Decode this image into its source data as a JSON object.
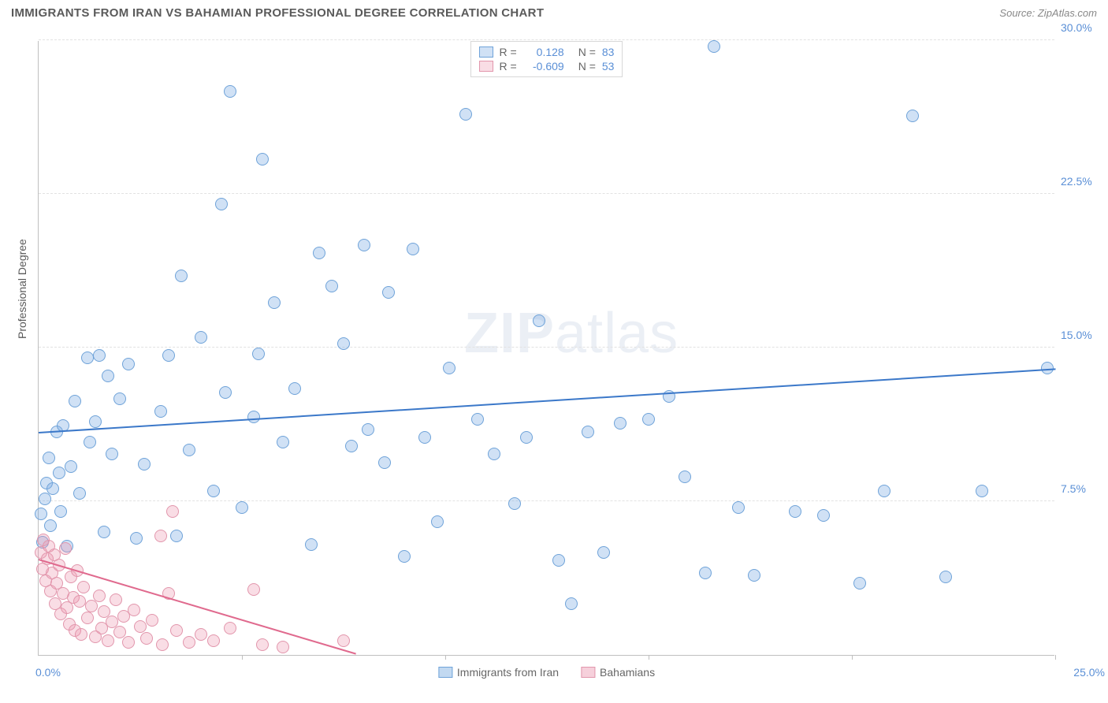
{
  "title": "IMMIGRANTS FROM IRAN VS BAHAMIAN PROFESSIONAL DEGREE CORRELATION CHART",
  "source_label": "Source:",
  "source_name": "ZipAtlas.com",
  "y_axis_label": "Professional Degree",
  "watermark_bold": "ZIP",
  "watermark_rest": "atlas",
  "chart": {
    "type": "scatter",
    "xlim": [
      0,
      25
    ],
    "ylim": [
      0,
      30
    ],
    "x_origin_label": "0.0%",
    "x_max_label": "25.0%",
    "y_ticks": [
      7.5,
      15.0,
      22.5,
      30.0
    ],
    "y_tick_labels": [
      "7.5%",
      "15.0%",
      "22.5%",
      "30.0%"
    ],
    "x_tick_positions": [
      5,
      10,
      15,
      20,
      25
    ],
    "background_color": "#ffffff",
    "grid_color": "#e2e2e2",
    "axis_color": "#bfbfbf",
    "tick_label_color": "#5a8fd6",
    "point_radius": 8,
    "series": [
      {
        "name": "Immigrants from Iran",
        "color_fill": "rgba(120,170,225,0.35)",
        "color_stroke": "#6fa3d9",
        "trend_color": "#3b78c9",
        "trend_width": 2,
        "r_label": "R =",
        "r_value": "0.128",
        "n_label": "N =",
        "n_value": "83",
        "trend": {
          "x1": 0,
          "y1": 10.8,
          "x2": 25,
          "y2": 13.9
        },
        "points": [
          [
            0.05,
            6.9
          ],
          [
            0.1,
            5.5
          ],
          [
            0.15,
            7.6
          ],
          [
            0.2,
            8.4
          ],
          [
            0.25,
            9.6
          ],
          [
            0.3,
            6.3
          ],
          [
            0.35,
            8.1
          ],
          [
            0.45,
            10.9
          ],
          [
            0.5,
            8.9
          ],
          [
            0.55,
            7.0
          ],
          [
            0.6,
            11.2
          ],
          [
            0.7,
            5.3
          ],
          [
            0.8,
            9.2
          ],
          [
            0.9,
            12.4
          ],
          [
            1.0,
            7.9
          ],
          [
            1.2,
            14.5
          ],
          [
            1.25,
            10.4
          ],
          [
            1.4,
            11.4
          ],
          [
            1.5,
            14.6
          ],
          [
            1.6,
            6.0
          ],
          [
            1.7,
            13.6
          ],
          [
            1.8,
            9.8
          ],
          [
            2.0,
            12.5
          ],
          [
            2.2,
            14.2
          ],
          [
            2.4,
            5.7
          ],
          [
            2.6,
            9.3
          ],
          [
            3.0,
            11.9
          ],
          [
            3.2,
            14.6
          ],
          [
            3.4,
            5.8
          ],
          [
            3.5,
            18.5
          ],
          [
            3.7,
            10.0
          ],
          [
            4.0,
            15.5
          ],
          [
            4.3,
            8.0
          ],
          [
            4.5,
            22.0
          ],
          [
            4.6,
            12.8
          ],
          [
            4.7,
            27.5
          ],
          [
            5.0,
            7.2
          ],
          [
            5.3,
            11.6
          ],
          [
            5.4,
            14.7
          ],
          [
            5.5,
            24.2
          ],
          [
            5.8,
            17.2
          ],
          [
            6.0,
            10.4
          ],
          [
            6.3,
            13.0
          ],
          [
            6.7,
            5.4
          ],
          [
            6.9,
            19.6
          ],
          [
            7.2,
            18.0
          ],
          [
            7.5,
            15.2
          ],
          [
            7.7,
            10.2
          ],
          [
            8.0,
            20.0
          ],
          [
            8.1,
            11.0
          ],
          [
            8.5,
            9.4
          ],
          [
            8.6,
            17.7
          ],
          [
            9.0,
            4.8
          ],
          [
            9.2,
            19.8
          ],
          [
            9.5,
            10.6
          ],
          [
            9.8,
            6.5
          ],
          [
            10.1,
            14.0
          ],
          [
            10.5,
            26.4
          ],
          [
            10.8,
            11.5
          ],
          [
            11.2,
            9.8
          ],
          [
            11.7,
            7.4
          ],
          [
            12.0,
            10.6
          ],
          [
            12.3,
            16.3
          ],
          [
            12.8,
            4.6
          ],
          [
            13.1,
            2.5
          ],
          [
            13.5,
            10.9
          ],
          [
            13.9,
            5.0
          ],
          [
            14.3,
            11.3
          ],
          [
            15.0,
            11.5
          ],
          [
            15.5,
            12.6
          ],
          [
            15.9,
            8.7
          ],
          [
            16.4,
            4.0
          ],
          [
            16.6,
            29.7
          ],
          [
            17.2,
            7.2
          ],
          [
            17.6,
            3.9
          ],
          [
            18.6,
            7.0
          ],
          [
            19.3,
            6.8
          ],
          [
            20.2,
            3.5
          ],
          [
            20.8,
            8.0
          ],
          [
            21.5,
            26.3
          ],
          [
            22.3,
            3.8
          ],
          [
            23.2,
            8.0
          ],
          [
            24.8,
            14.0
          ]
        ]
      },
      {
        "name": "Bahamians",
        "color_fill": "rgba(235,150,175,0.32)",
        "color_stroke": "#e296ac",
        "trend_color": "#e06a8e",
        "trend_width": 2,
        "r_label": "R =",
        "r_value": "-0.609",
        "n_label": "N =",
        "n_value": "53",
        "trend": {
          "x1": 0,
          "y1": 4.6,
          "x2": 7.8,
          "y2": 0
        },
        "points": [
          [
            0.05,
            5.0
          ],
          [
            0.1,
            4.2
          ],
          [
            0.12,
            5.6
          ],
          [
            0.18,
            3.6
          ],
          [
            0.22,
            4.7
          ],
          [
            0.25,
            5.3
          ],
          [
            0.3,
            3.1
          ],
          [
            0.32,
            4.0
          ],
          [
            0.38,
            4.9
          ],
          [
            0.4,
            2.5
          ],
          [
            0.45,
            3.5
          ],
          [
            0.5,
            4.4
          ],
          [
            0.55,
            2.0
          ],
          [
            0.6,
            3.0
          ],
          [
            0.65,
            5.2
          ],
          [
            0.7,
            2.3
          ],
          [
            0.75,
            1.5
          ],
          [
            0.8,
            3.8
          ],
          [
            0.85,
            2.8
          ],
          [
            0.9,
            1.2
          ],
          [
            0.95,
            4.1
          ],
          [
            1.0,
            2.6
          ],
          [
            1.05,
            1.0
          ],
          [
            1.1,
            3.3
          ],
          [
            1.2,
            1.8
          ],
          [
            1.3,
            2.4
          ],
          [
            1.4,
            0.9
          ],
          [
            1.5,
            2.9
          ],
          [
            1.55,
            1.3
          ],
          [
            1.6,
            2.1
          ],
          [
            1.7,
            0.7
          ],
          [
            1.8,
            1.6
          ],
          [
            1.9,
            2.7
          ],
          [
            2.0,
            1.1
          ],
          [
            2.1,
            1.9
          ],
          [
            2.2,
            0.6
          ],
          [
            2.35,
            2.2
          ],
          [
            2.5,
            1.4
          ],
          [
            2.65,
            0.8
          ],
          [
            2.8,
            1.7
          ],
          [
            3.0,
            5.8
          ],
          [
            3.05,
            0.5
          ],
          [
            3.2,
            3.0
          ],
          [
            3.3,
            7.0
          ],
          [
            3.4,
            1.2
          ],
          [
            3.7,
            0.6
          ],
          [
            4.0,
            1.0
          ],
          [
            4.3,
            0.7
          ],
          [
            4.7,
            1.3
          ],
          [
            5.3,
            3.2
          ],
          [
            5.5,
            0.5
          ],
          [
            6.0,
            0.4
          ],
          [
            7.5,
            0.7
          ]
        ]
      }
    ]
  },
  "legend_bottom": [
    {
      "label": "Immigrants from Iran",
      "fill": "rgba(120,170,225,0.45)",
      "stroke": "#6fa3d9"
    },
    {
      "label": "Bahamians",
      "fill": "rgba(235,150,175,0.45)",
      "stroke": "#e296ac"
    }
  ]
}
